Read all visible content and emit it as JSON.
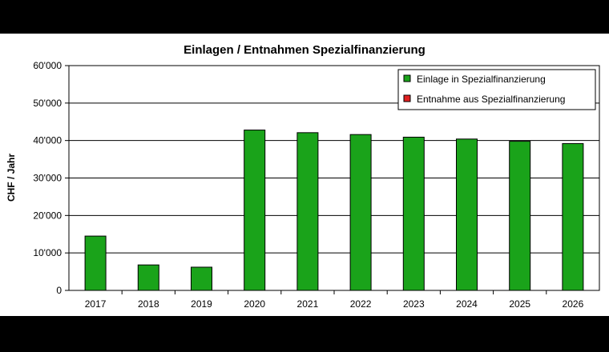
{
  "chart_data": {
    "type": "bar",
    "title": "Einlagen / Entnahmen Spezialfinanzierung",
    "xlabel": "",
    "ylabel": "CHF / Jahr",
    "categories": [
      "2017",
      "2018",
      "2019",
      "2020",
      "2021",
      "2022",
      "2023",
      "2024",
      "2025",
      "2026"
    ],
    "series": [
      {
        "name": "Einlage in Spezialfinanzierung",
        "color": "#1aa31a",
        "values": [
          14500,
          6800,
          6200,
          42800,
          42100,
          41600,
          40900,
          40400,
          39800,
          39200
        ]
      },
      {
        "name": "Entnahme aus Spezialfinanzierung",
        "color": "#e02020",
        "values": [
          0,
          0,
          0,
          0,
          0,
          0,
          0,
          0,
          0,
          0
        ]
      }
    ],
    "ylim": [
      0,
      60000
    ],
    "yticks": [
      0,
      10000,
      20000,
      30000,
      40000,
      50000,
      60000
    ],
    "ytick_labels": [
      "0",
      "10'000",
      "20'000",
      "30'000",
      "40'000",
      "50'000",
      "60'000"
    ],
    "grid": true,
    "legend_position": "top-right"
  }
}
